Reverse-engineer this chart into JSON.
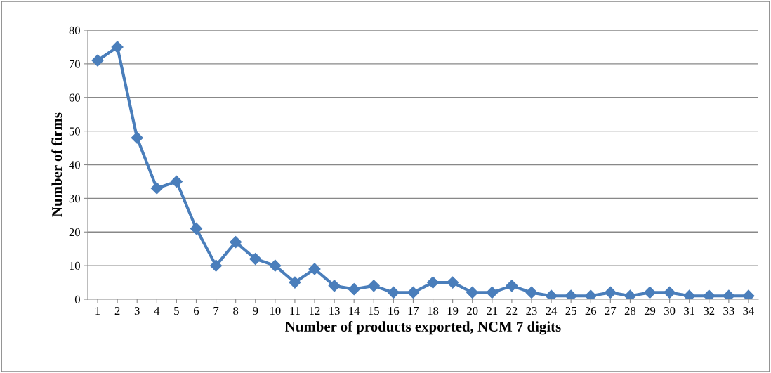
{
  "chart_data": {
    "type": "line",
    "xlabel": "Number of products exported, NCM 7 digits",
    "ylabel": "Number of firms",
    "categories": [
      "1",
      "2",
      "3",
      "4",
      "5",
      "6",
      "7",
      "8",
      "9",
      "10",
      "11",
      "12",
      "13",
      "14",
      "15",
      "16",
      "17",
      "18",
      "19",
      "20",
      "21",
      "22",
      "23",
      "24",
      "25",
      "26",
      "27",
      "28",
      "29",
      "30",
      "31",
      "32",
      "33",
      "34"
    ],
    "series": [
      {
        "color": "#4a7ebb",
        "values": [
          71,
          75,
          48,
          33,
          35,
          21,
          10,
          17,
          12,
          10,
          5,
          9,
          4,
          3,
          4,
          2,
          2,
          5,
          5,
          2,
          2,
          4,
          2,
          1,
          1,
          1,
          2,
          1,
          2,
          2,
          1,
          1,
          1,
          1
        ]
      }
    ],
    "ylim": [
      0,
      80
    ],
    "yticks": [
      0,
      10,
      20,
      30,
      40,
      50,
      60,
      70,
      80
    ],
    "grid": "y",
    "marker": "diamond",
    "line_style": "solid",
    "legend": false
  }
}
